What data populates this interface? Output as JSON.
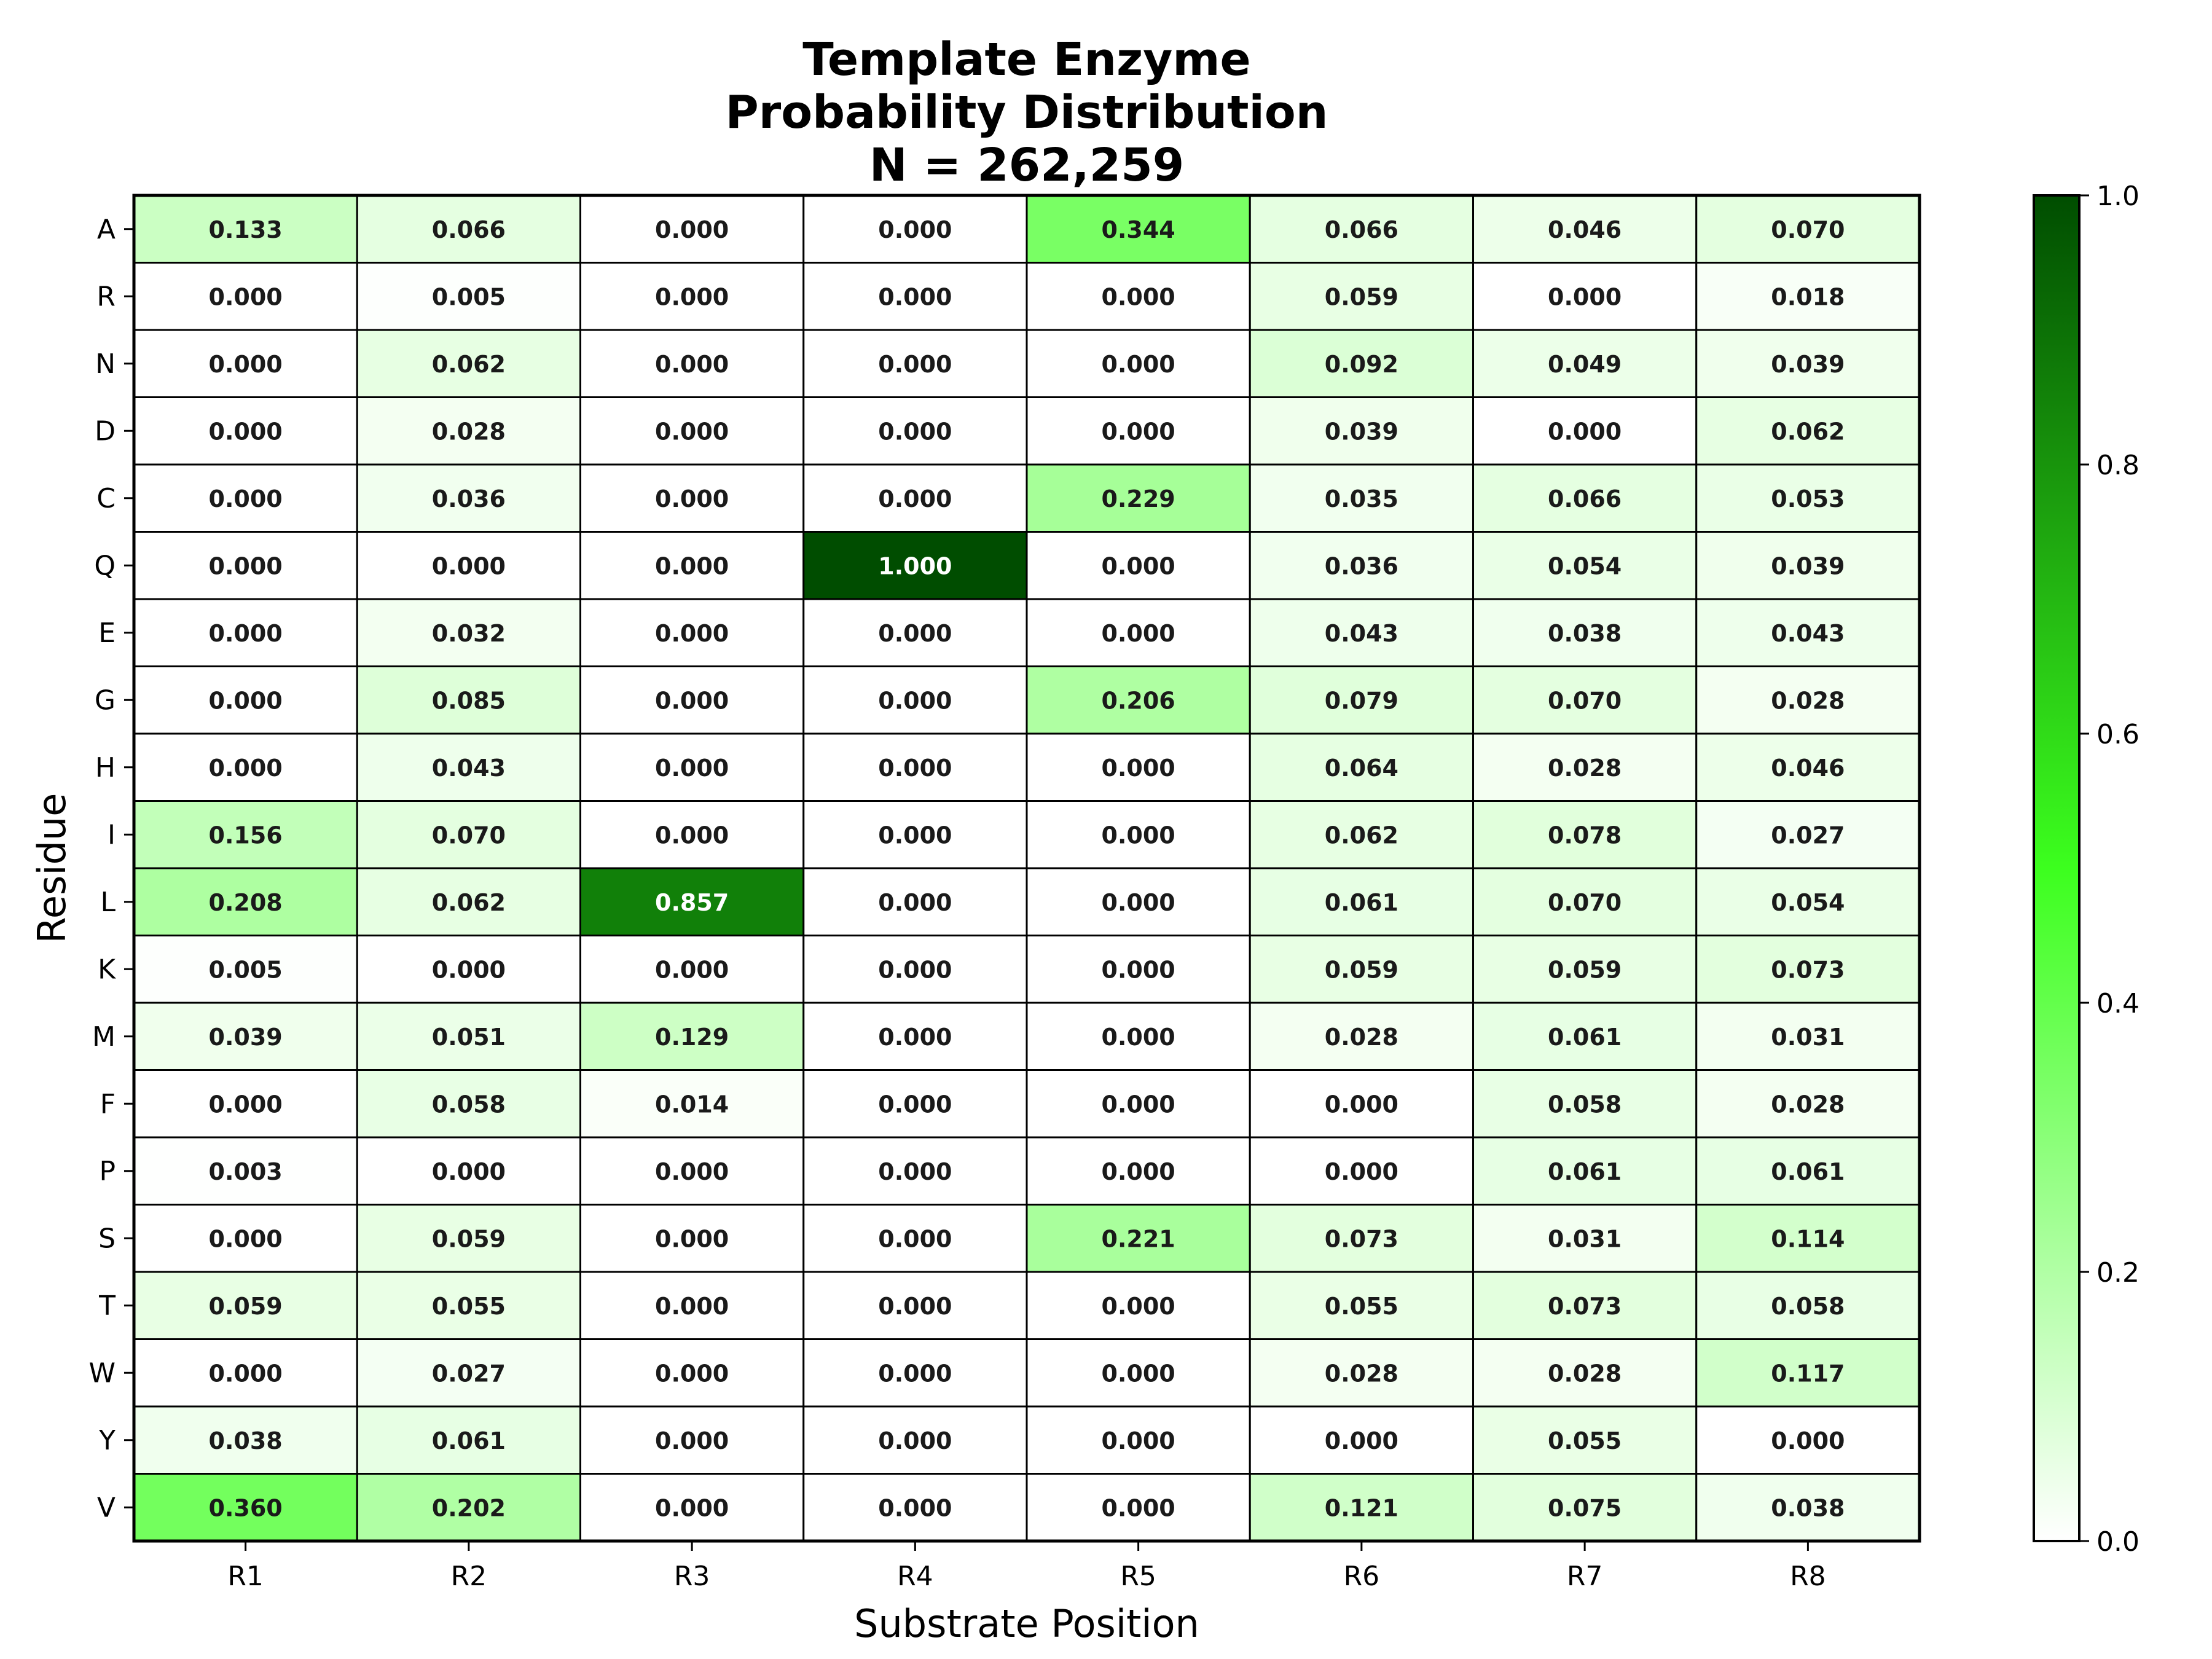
{
  "chart_data": {
    "type": "heatmap",
    "title": [
      "Template Enzyme",
      "Probability Distribution",
      "N = 262,259"
    ],
    "xlabel": "Substrate Position",
    "ylabel": "Residue",
    "x_categories": [
      "R1",
      "R2",
      "R3",
      "R4",
      "R5",
      "R6",
      "R7",
      "R8"
    ],
    "y_categories": [
      "A",
      "R",
      "N",
      "D",
      "C",
      "Q",
      "E",
      "G",
      "H",
      "I",
      "L",
      "K",
      "M",
      "F",
      "P",
      "S",
      "T",
      "W",
      "Y",
      "V"
    ],
    "values": [
      [
        0.133,
        0.066,
        0.0,
        0.0,
        0.344,
        0.066,
        0.046,
        0.07
      ],
      [
        0.0,
        0.005,
        0.0,
        0.0,
        0.0,
        0.059,
        0.0,
        0.018
      ],
      [
        0.0,
        0.062,
        0.0,
        0.0,
        0.0,
        0.092,
        0.049,
        0.039
      ],
      [
        0.0,
        0.028,
        0.0,
        0.0,
        0.0,
        0.039,
        0.0,
        0.062
      ],
      [
        0.0,
        0.036,
        0.0,
        0.0,
        0.229,
        0.035,
        0.066,
        0.053
      ],
      [
        0.0,
        0.0,
        0.0,
        1.0,
        0.0,
        0.036,
        0.054,
        0.039
      ],
      [
        0.0,
        0.032,
        0.0,
        0.0,
        0.0,
        0.043,
        0.038,
        0.043
      ],
      [
        0.0,
        0.085,
        0.0,
        0.0,
        0.206,
        0.079,
        0.07,
        0.028
      ],
      [
        0.0,
        0.043,
        0.0,
        0.0,
        0.0,
        0.064,
        0.028,
        0.046
      ],
      [
        0.156,
        0.07,
        0.0,
        0.0,
        0.0,
        0.062,
        0.078,
        0.027
      ],
      [
        0.208,
        0.062,
        0.857,
        0.0,
        0.0,
        0.061,
        0.07,
        0.054
      ],
      [
        0.005,
        0.0,
        0.0,
        0.0,
        0.0,
        0.059,
        0.059,
        0.073
      ],
      [
        0.039,
        0.051,
        0.129,
        0.0,
        0.0,
        0.028,
        0.061,
        0.031
      ],
      [
        0.0,
        0.058,
        0.014,
        0.0,
        0.0,
        0.0,
        0.058,
        0.028
      ],
      [
        0.003,
        0.0,
        0.0,
        0.0,
        0.0,
        0.0,
        0.061,
        0.061
      ],
      [
        0.0,
        0.059,
        0.0,
        0.0,
        0.221,
        0.073,
        0.031,
        0.114
      ],
      [
        0.059,
        0.055,
        0.0,
        0.0,
        0.0,
        0.055,
        0.073,
        0.058
      ],
      [
        0.0,
        0.027,
        0.0,
        0.0,
        0.0,
        0.028,
        0.028,
        0.117
      ],
      [
        0.038,
        0.061,
        0.0,
        0.0,
        0.0,
        0.0,
        0.055,
        0.0
      ],
      [
        0.36,
        0.202,
        0.0,
        0.0,
        0.0,
        0.121,
        0.075,
        0.038
      ]
    ],
    "value_format": "3 decimals",
    "colormap": [
      "#ffffff",
      "#3cff1e",
      "#004d00"
    ],
    "colorbar": {
      "range": [
        0.0,
        1.0
      ],
      "ticks": [
        "0.0",
        "0.2",
        "0.4",
        "0.6",
        "0.8",
        "1.0"
      ]
    }
  }
}
